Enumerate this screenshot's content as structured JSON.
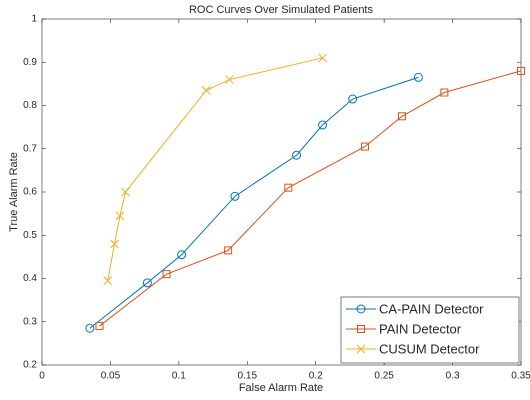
{
  "chart_data": {
    "type": "line",
    "title": "ROC Curves Over Simulated Patients",
    "xlabel": "False Alarm Rate",
    "ylabel": "True Alarm Rate",
    "xlim": [
      0,
      0.35
    ],
    "ylim": [
      0.2,
      1
    ],
    "xticks": [
      0,
      0.05,
      0.1,
      0.15,
      0.2,
      0.25,
      0.3,
      0.35
    ],
    "yticks": [
      0.2,
      0.3,
      0.4,
      0.5,
      0.6,
      0.7,
      0.8,
      0.9,
      1
    ],
    "grid": false,
    "legend": "lower right",
    "series": [
      {
        "name": "CA-PAIN Detector",
        "color": "#0072bd",
        "marker": "o",
        "x": [
          0.035,
          0.077,
          0.102,
          0.141,
          0.186,
          0.205,
          0.227,
          0.275
        ],
        "values": [
          0.285,
          0.39,
          0.455,
          0.59,
          0.685,
          0.755,
          0.815,
          0.865
        ]
      },
      {
        "name": "PAIN Detector",
        "color": "#d95319",
        "marker": "s",
        "x": [
          0.042,
          0.091,
          0.136,
          0.18,
          0.236,
          0.263,
          0.294,
          0.35
        ],
        "values": [
          0.29,
          0.41,
          0.465,
          0.61,
          0.705,
          0.775,
          0.83,
          0.88
        ]
      },
      {
        "name": "CUSUM Detector",
        "color": "#edb120",
        "marker": "x",
        "x": [
          0.048,
          0.053,
          0.057,
          0.061,
          0.12,
          0.137,
          0.205
        ],
        "values": [
          0.395,
          0.48,
          0.545,
          0.6,
          0.835,
          0.86,
          0.91
        ]
      }
    ]
  }
}
